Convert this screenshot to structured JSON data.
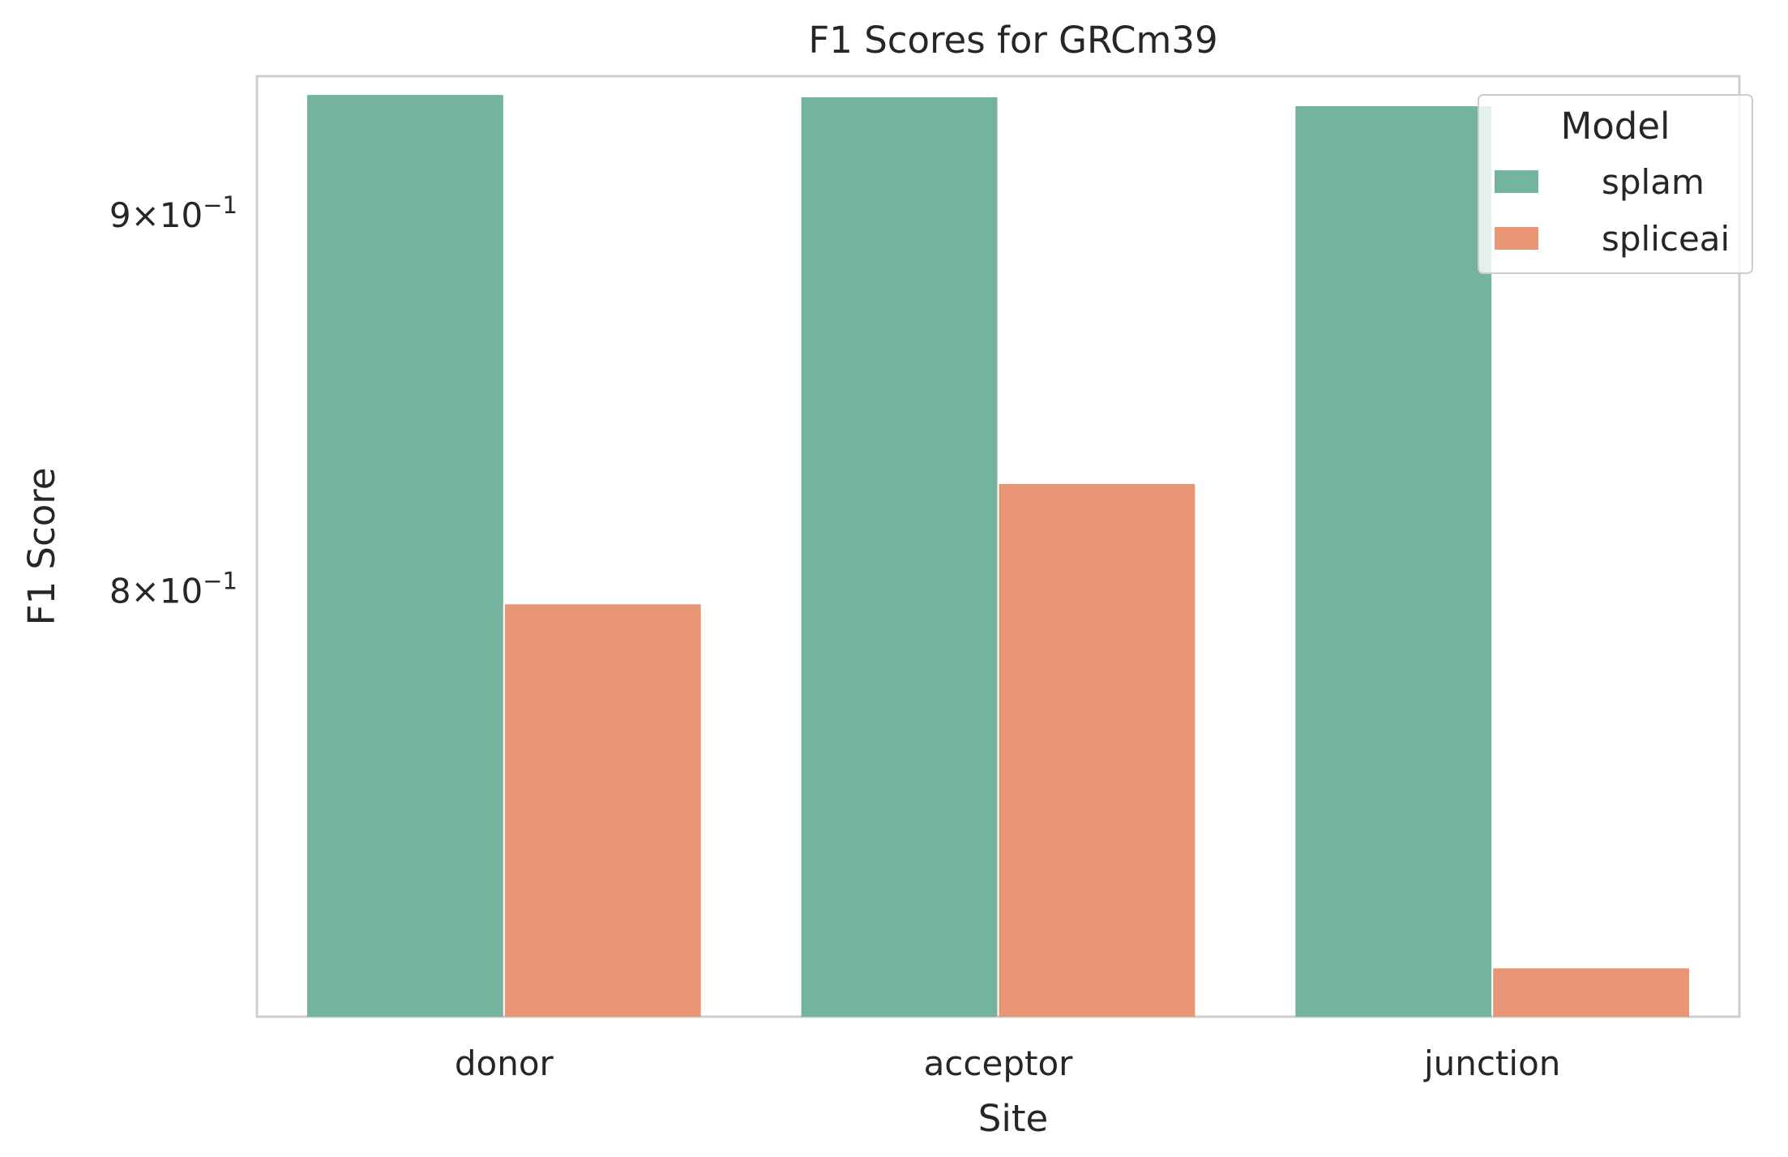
{
  "chart_data": {
    "type": "bar",
    "title": "F1 Scores for GRCm39",
    "xlabel": "Site",
    "ylabel": "F1 Score",
    "yscale": "log",
    "ylim": [
      0.7,
      0.94
    ],
    "categories": [
      "donor",
      "acceptor",
      "junction"
    ],
    "series": [
      {
        "name": "splam",
        "color": "#73b3a0",
        "values": [
          0.9345,
          0.9338,
          0.9312
        ]
      },
      {
        "name": "spliceai",
        "color": "#e89675",
        "values": [
          0.7966,
          0.8272,
          0.7107
        ]
      }
    ],
    "yticks": [
      {
        "value": 0.9,
        "mantissa": "9",
        "exponent": "−1"
      },
      {
        "value": 0.8,
        "mantissa": "8",
        "exponent": "−1"
      }
    ],
    "legend": {
      "title": "Model",
      "position": "top-right"
    },
    "grid": false
  }
}
